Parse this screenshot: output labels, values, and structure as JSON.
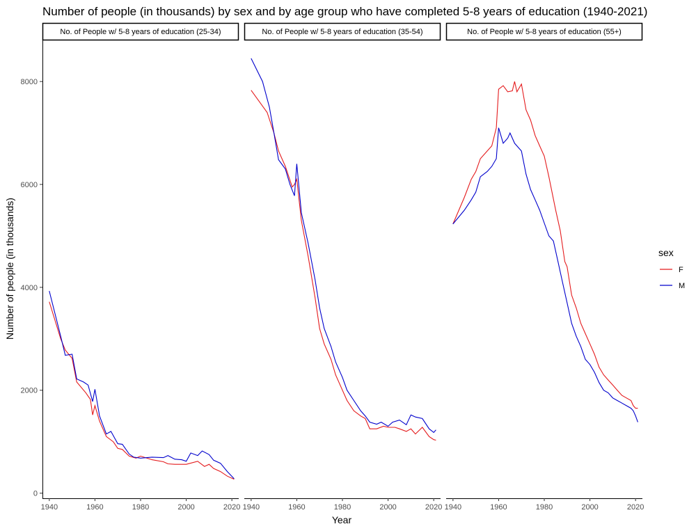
{
  "chart_data": {
    "type": "line",
    "title": "Number of people (in thousands) by sex and by age group who have completed 5-8 years of education (1940-2021)",
    "xlabel": "Year",
    "ylabel": "Number of people (in thousands)",
    "xlim": [
      1937,
      2023
    ],
    "ylim": [
      -100,
      8800
    ],
    "x_ticks": [
      1940,
      1960,
      1980,
      2000,
      2020
    ],
    "y_ticks": [
      0,
      2000,
      4000,
      6000,
      8000
    ],
    "legend": {
      "title": "sex",
      "position": "right",
      "entries": [
        {
          "label": "F",
          "color": "#e41a1c"
        },
        {
          "label": "M",
          "color": "#0000cc"
        }
      ]
    },
    "panels": [
      {
        "strip": "No. of People w/ 5-8 years of education (25-34)",
        "series": [
          {
            "name": "F",
            "color": "#e41a1c",
            "points": [
              [
                1940,
                3720
              ],
              [
                1945,
                3000
              ],
              [
                1947,
                2780
              ],
              [
                1950,
                2620
              ],
              [
                1952,
                2160
              ],
              [
                1956,
                1950
              ],
              [
                1958,
                1820
              ],
              [
                1959,
                1520
              ],
              [
                1960,
                1700
              ],
              [
                1962,
                1400
              ],
              [
                1965,
                1100
              ],
              [
                1968,
                1000
              ],
              [
                1970,
                870
              ],
              [
                1972,
                850
              ],
              [
                1975,
                720
              ],
              [
                1978,
                680
              ],
              [
                1980,
                720
              ],
              [
                1985,
                650
              ],
              [
                1990,
                610
              ],
              [
                1992,
                570
              ],
              [
                1995,
                560
              ],
              [
                2000,
                560
              ],
              [
                2005,
                620
              ],
              [
                2008,
                520
              ],
              [
                2010,
                560
              ],
              [
                2012,
                480
              ],
              [
                2015,
                420
              ],
              [
                2018,
                330
              ],
              [
                2021,
                270
              ]
            ]
          },
          {
            "name": "M",
            "color": "#0000cc",
            "points": [
              [
                1940,
                3930
              ],
              [
                1945,
                3050
              ],
              [
                1947,
                2680
              ],
              [
                1950,
                2700
              ],
              [
                1952,
                2220
              ],
              [
                1955,
                2160
              ],
              [
                1957,
                2100
              ],
              [
                1959,
                1780
              ],
              [
                1960,
                2020
              ],
              [
                1962,
                1500
              ],
              [
                1965,
                1150
              ],
              [
                1967,
                1200
              ],
              [
                1970,
                960
              ],
              [
                1972,
                950
              ],
              [
                1975,
                760
              ],
              [
                1977,
                700
              ],
              [
                1980,
                680
              ],
              [
                1985,
                700
              ],
              [
                1990,
                690
              ],
              [
                1992,
                730
              ],
              [
                1995,
                660
              ],
              [
                1998,
                650
              ],
              [
                2000,
                620
              ],
              [
                2002,
                780
              ],
              [
                2005,
                730
              ],
              [
                2007,
                820
              ],
              [
                2010,
                750
              ],
              [
                2012,
                640
              ],
              [
                2015,
                580
              ],
              [
                2018,
                420
              ],
              [
                2021,
                280
              ]
            ]
          }
        ]
      },
      {
        "strip": "No. of People w/ 5-8 years of education (35-54)",
        "series": [
          {
            "name": "F",
            "color": "#e41a1c",
            "points": [
              [
                1940,
                7830
              ],
              [
                1947,
                7400
              ],
              [
                1950,
                7000
              ],
              [
                1952,
                6650
              ],
              [
                1955,
                6350
              ],
              [
                1958,
                5950
              ],
              [
                1959,
                6000
              ],
              [
                1960,
                6100
              ],
              [
                1962,
                5300
              ],
              [
                1965,
                4600
              ],
              [
                1968,
                3800
              ],
              [
                1970,
                3200
              ],
              [
                1972,
                2900
              ],
              [
                1975,
                2600
              ],
              [
                1977,
                2300
              ],
              [
                1980,
                2000
              ],
              [
                1982,
                1800
              ],
              [
                1985,
                1600
              ],
              [
                1988,
                1500
              ],
              [
                1990,
                1450
              ],
              [
                1992,
                1250
              ],
              [
                1995,
                1250
              ],
              [
                1998,
                1300
              ],
              [
                2000,
                1280
              ],
              [
                2003,
                1280
              ],
              [
                2005,
                1250
              ],
              [
                2008,
                1200
              ],
              [
                2010,
                1250
              ],
              [
                2012,
                1150
              ],
              [
                2015,
                1280
              ],
              [
                2018,
                1100
              ],
              [
                2020,
                1040
              ],
              [
                2021,
                1030
              ]
            ]
          },
          {
            "name": "M",
            "color": "#0000cc",
            "points": [
              [
                1940,
                8450
              ],
              [
                1945,
                8000
              ],
              [
                1948,
                7500
              ],
              [
                1950,
                7000
              ],
              [
                1952,
                6480
              ],
              [
                1955,
                6300
              ],
              [
                1957,
                6000
              ],
              [
                1959,
                5780
              ],
              [
                1960,
                6400
              ],
              [
                1962,
                5450
              ],
              [
                1965,
                4850
              ],
              [
                1968,
                4150
              ],
              [
                1970,
                3600
              ],
              [
                1972,
                3200
              ],
              [
                1975,
                2850
              ],
              [
                1977,
                2550
              ],
              [
                1980,
                2250
              ],
              [
                1982,
                2000
              ],
              [
                1985,
                1800
              ],
              [
                1988,
                1600
              ],
              [
                1990,
                1500
              ],
              [
                1992,
                1380
              ],
              [
                1995,
                1340
              ],
              [
                1997,
                1380
              ],
              [
                2000,
                1300
              ],
              [
                2002,
                1380
              ],
              [
                2005,
                1420
              ],
              [
                2008,
                1330
              ],
              [
                2010,
                1520
              ],
              [
                2012,
                1480
              ],
              [
                2015,
                1450
              ],
              [
                2018,
                1250
              ],
              [
                2020,
                1180
              ],
              [
                2021,
                1230
              ]
            ]
          }
        ]
      },
      {
        "strip": "No. of People w/ 5-8 years of education (55+)",
        "series": [
          {
            "name": "F",
            "color": "#e41a1c",
            "points": [
              [
                1940,
                5230
              ],
              [
                1945,
                5750
              ],
              [
                1948,
                6100
              ],
              [
                1950,
                6250
              ],
              [
                1952,
                6500
              ],
              [
                1955,
                6650
              ],
              [
                1957,
                6750
              ],
              [
                1959,
                7100
              ],
              [
                1960,
                7850
              ],
              [
                1962,
                7920
              ],
              [
                1964,
                7800
              ],
              [
                1966,
                7820
              ],
              [
                1967,
                8000
              ],
              [
                1968,
                7800
              ],
              [
                1970,
                7950
              ],
              [
                1972,
                7450
              ],
              [
                1974,
                7250
              ],
              [
                1976,
                6950
              ],
              [
                1978,
                6750
              ],
              [
                1980,
                6550
              ],
              [
                1982,
                6150
              ],
              [
                1985,
                5500
              ],
              [
                1987,
                5100
              ],
              [
                1989,
                4500
              ],
              [
                1990,
                4400
              ],
              [
                1992,
                3850
              ],
              [
                1994,
                3600
              ],
              [
                1996,
                3300
              ],
              [
                1998,
                3100
              ],
              [
                2000,
                2900
              ],
              [
                2002,
                2700
              ],
              [
                2004,
                2450
              ],
              [
                2006,
                2300
              ],
              [
                2008,
                2200
              ],
              [
                2010,
                2100
              ],
              [
                2012,
                2000
              ],
              [
                2014,
                1900
              ],
              [
                2016,
                1850
              ],
              [
                2018,
                1800
              ],
              [
                2019,
                1700
              ],
              [
                2020,
                1650
              ],
              [
                2021,
                1650
              ]
            ]
          },
          {
            "name": "M",
            "color": "#0000cc",
            "points": [
              [
                1940,
                5230
              ],
              [
                1945,
                5500
              ],
              [
                1948,
                5700
              ],
              [
                1950,
                5850
              ],
              [
                1952,
                6150
              ],
              [
                1955,
                6250
              ],
              [
                1957,
                6350
              ],
              [
                1959,
                6500
              ],
              [
                1960,
                7100
              ],
              [
                1962,
                6800
              ],
              [
                1964,
                6900
              ],
              [
                1965,
                7000
              ],
              [
                1967,
                6800
              ],
              [
                1970,
                6650
              ],
              [
                1972,
                6200
              ],
              [
                1974,
                5900
              ],
              [
                1976,
                5700
              ],
              [
                1978,
                5500
              ],
              [
                1980,
                5250
              ],
              [
                1982,
                5000
              ],
              [
                1984,
                4900
              ],
              [
                1986,
                4500
              ],
              [
                1988,
                4100
              ],
              [
                1990,
                3700
              ],
              [
                1992,
                3300
              ],
              [
                1994,
                3050
              ],
              [
                1996,
                2850
              ],
              [
                1998,
                2600
              ],
              [
                2000,
                2500
              ],
              [
                2002,
                2350
              ],
              [
                2004,
                2150
              ],
              [
                2006,
                2000
              ],
              [
                2008,
                1950
              ],
              [
                2010,
                1850
              ],
              [
                2012,
                1800
              ],
              [
                2014,
                1750
              ],
              [
                2016,
                1700
              ],
              [
                2018,
                1650
              ],
              [
                2019,
                1600
              ],
              [
                2020,
                1500
              ],
              [
                2021,
                1380
              ]
            ]
          }
        ]
      }
    ]
  }
}
